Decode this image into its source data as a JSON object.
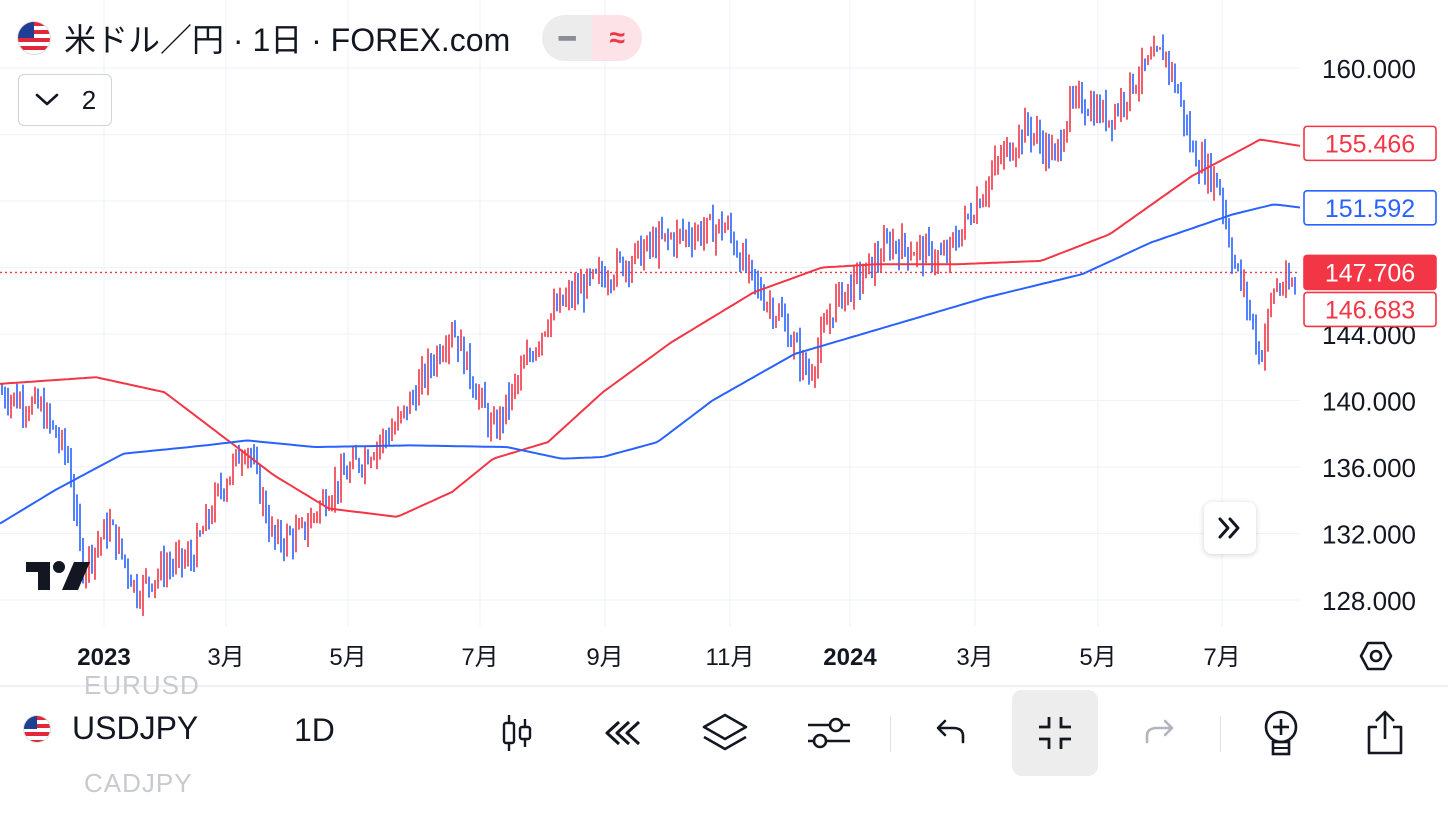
{
  "header": {
    "title": "米ドル／円 · 1日 · FOREX.com",
    "flag": "us-flag-icon",
    "style_buttons": [
      {
        "name": "minus-icon",
        "glyph": "━"
      },
      {
        "name": "approx-icon",
        "glyph": "≈"
      }
    ],
    "indicator_count": "2"
  },
  "price_axis": {
    "ticks": [
      "160.000",
      "144.000",
      "140.000",
      "136.000",
      "132.000",
      "128.000"
    ],
    "labels": [
      {
        "text": "155.466",
        "color": "#f23645",
        "filled": false,
        "value": 155.466
      },
      {
        "text": "151.592",
        "color": "#2962ff",
        "filled": false,
        "value": 151.592
      },
      {
        "text": "147.706",
        "color": "#f23645",
        "filled": true,
        "value": 147.706
      },
      {
        "text": "146.683",
        "color": "#f23645",
        "filled": false,
        "value": 146.683
      }
    ]
  },
  "time_axis": {
    "ticks": [
      {
        "label": "2023",
        "bold": true
      },
      {
        "label": "3月",
        "bold": false
      },
      {
        "label": "5月",
        "bold": false
      },
      {
        "label": "7月",
        "bold": false
      },
      {
        "label": "9月",
        "bold": false
      },
      {
        "label": "11月",
        "bold": false
      },
      {
        "label": "2024",
        "bold": true
      },
      {
        "label": "3月",
        "bold": false
      },
      {
        "label": "5月",
        "bold": false
      },
      {
        "label": "7月",
        "bold": false
      }
    ]
  },
  "chart_data": {
    "type": "line",
    "price_range": [
      126,
      164
    ],
    "current_price": 147.706,
    "grid": true,
    "series": [
      {
        "color": "#f23645",
        "points": [
          [
            0,
            141.0
          ],
          [
            0.07,
            141.4
          ],
          [
            0.12,
            140.5
          ],
          [
            0.16,
            138.0
          ],
          [
            0.2,
            135.5
          ],
          [
            0.24,
            133.5
          ],
          [
            0.29,
            133.0
          ],
          [
            0.33,
            134.5
          ],
          [
            0.36,
            136.5
          ],
          [
            0.4,
            137.5
          ],
          [
            0.44,
            140.5
          ],
          [
            0.49,
            143.5
          ],
          [
            0.55,
            146.5
          ],
          [
            0.6,
            148.0
          ],
          [
            0.64,
            148.2
          ],
          [
            0.7,
            148.2
          ],
          [
            0.76,
            148.4
          ],
          [
            0.81,
            150.0
          ],
          [
            0.87,
            153.5
          ],
          [
            0.92,
            155.7
          ],
          [
            0.95,
            155.3
          ]
        ]
      },
      {
        "color": "#2962ff",
        "points": [
          [
            0,
            132.6
          ],
          [
            0.04,
            134.6
          ],
          [
            0.09,
            136.8
          ],
          [
            0.15,
            137.3
          ],
          [
            0.18,
            137.6
          ],
          [
            0.23,
            137.2
          ],
          [
            0.3,
            137.3
          ],
          [
            0.37,
            137.2
          ],
          [
            0.41,
            136.5
          ],
          [
            0.44,
            136.6
          ],
          [
            0.48,
            137.5
          ],
          [
            0.52,
            140.0
          ],
          [
            0.58,
            142.8
          ],
          [
            0.65,
            144.5
          ],
          [
            0.72,
            146.2
          ],
          [
            0.79,
            147.6
          ],
          [
            0.84,
            149.5
          ],
          [
            0.9,
            151.2
          ],
          [
            0.93,
            151.8
          ],
          [
            0.95,
            151.6
          ]
        ]
      },
      {
        "name": "bars",
        "color": "#2962ff",
        "up_color": "#f23645",
        "points": [
          [
            0.0,
            140.5
          ],
          [
            0.03,
            139.5
          ],
          [
            0.05,
            136.5
          ],
          [
            0.06,
            130.0
          ],
          [
            0.08,
            132.5
          ],
          [
            0.1,
            128.5
          ],
          [
            0.12,
            130.0
          ],
          [
            0.14,
            130.5
          ],
          [
            0.16,
            134.5
          ],
          [
            0.18,
            137.5
          ],
          [
            0.2,
            131.5
          ],
          [
            0.22,
            132.0
          ],
          [
            0.24,
            134.5
          ],
          [
            0.27,
            137.0
          ],
          [
            0.29,
            138.5
          ],
          [
            0.31,
            141.5
          ],
          [
            0.33,
            144.5
          ],
          [
            0.36,
            138.0
          ],
          [
            0.38,
            141.5
          ],
          [
            0.4,
            145.0
          ],
          [
            0.42,
            146.5
          ],
          [
            0.44,
            147.5
          ],
          [
            0.46,
            148.5
          ],
          [
            0.48,
            149.5
          ],
          [
            0.5,
            150.0
          ],
          [
            0.53,
            150.5
          ],
          [
            0.55,
            147.0
          ],
          [
            0.57,
            145.0
          ],
          [
            0.59,
            141.5
          ],
          [
            0.61,
            146.0
          ],
          [
            0.63,
            147.5
          ],
          [
            0.65,
            149.5
          ],
          [
            0.67,
            149.0
          ],
          [
            0.69,
            148.5
          ],
          [
            0.71,
            151.5
          ],
          [
            0.73,
            154.5
          ],
          [
            0.75,
            156.5
          ],
          [
            0.77,
            154.5
          ],
          [
            0.78,
            157.5
          ],
          [
            0.79,
            158.0
          ],
          [
            0.81,
            157.0
          ],
          [
            0.83,
            159.5
          ],
          [
            0.85,
            161.0
          ],
          [
            0.86,
            158.5
          ],
          [
            0.87,
            155.0
          ],
          [
            0.89,
            153.0
          ],
          [
            0.9,
            148.5
          ],
          [
            0.91,
            146.0
          ],
          [
            0.92,
            142.5
          ],
          [
            0.93,
            146.8
          ]
        ]
      }
    ]
  },
  "bottom_bar": {
    "ghost_top": "EURUSD",
    "ghost_bottom": "CADJPY",
    "symbol": "USDJPY",
    "interval": "1D",
    "tools": [
      {
        "name": "candlestick-icon"
      },
      {
        "name": "rewind-icon"
      },
      {
        "name": "layers-icon"
      },
      {
        "name": "sliders-icon"
      },
      {
        "name": "undo-icon"
      },
      {
        "name": "minimize-icon"
      },
      {
        "name": "redo-icon"
      },
      {
        "name": "add-indicator-icon"
      },
      {
        "name": "share-icon"
      }
    ]
  }
}
